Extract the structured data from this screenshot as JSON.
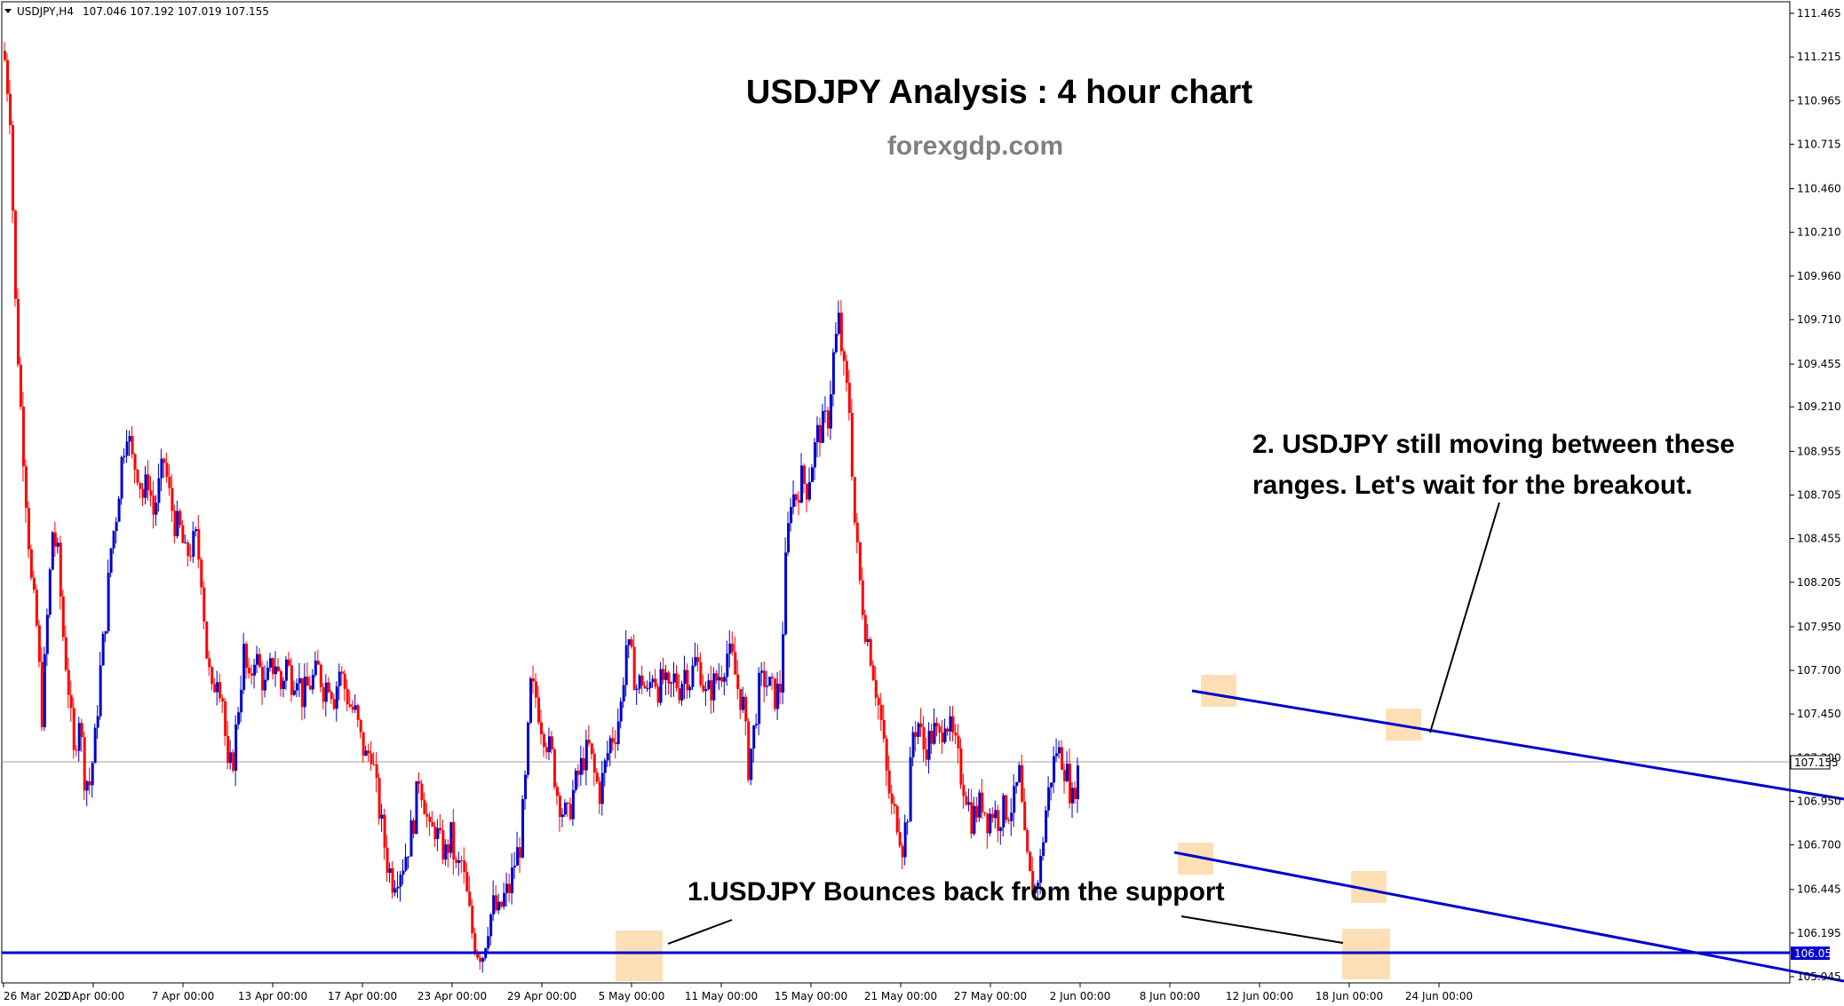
{
  "header": {
    "symbol": "USDJPY,H4",
    "ohlc": "107.046 107.192 107.019 107.155"
  },
  "chart_data": {
    "type": "candlestick",
    "title": "USDJPY Analysis : 4 hour chart",
    "subtitle": "forexgdp.com",
    "y_ticks": [
      "111.465",
      "111.215",
      "110.965",
      "110.715",
      "110.460",
      "110.210",
      "109.960",
      "109.710",
      "109.455",
      "109.210",
      "108.955",
      "108.705",
      "108.455",
      "108.205",
      "107.950",
      "107.700",
      "107.450",
      "107.200",
      "106.950",
      "106.700",
      "106.445",
      "106.195",
      "105.945"
    ],
    "x_ticks": [
      "26 Mar 2020",
      "1 Apr 00:00",
      "7 Apr 00:00",
      "13 Apr 00:00",
      "17 Apr 00:00",
      "23 Apr 00:00",
      "29 Apr 00:00",
      "5 May 00:00",
      "11 May 00:00",
      "15 May 00:00",
      "21 May 00:00",
      "27 May 00:00",
      "2 Jun 00:00",
      "8 Jun 00:00",
      "12 Jun 00:00",
      "18 Jun 00:00",
      "24 Jun 00:00"
    ],
    "ylim": [
      105.9,
      111.5
    ],
    "current_price": "107.155",
    "support_price": "106.050",
    "up_color": "#0000cd",
    "down_color": "#ff0000",
    "price_path": [
      [
        0,
        111.2
      ],
      [
        6,
        110.9
      ],
      [
        12,
        109.8
      ],
      [
        18,
        109.2
      ],
      [
        24,
        108.7
      ],
      [
        30,
        108.2
      ],
      [
        36,
        107.95
      ],
      [
        42,
        107.45
      ],
      [
        48,
        108.0
      ],
      [
        54,
        108.5
      ],
      [
        60,
        108.35
      ],
      [
        66,
        107.9
      ],
      [
        72,
        107.6
      ],
      [
        78,
        107.2
      ],
      [
        84,
        107.45
      ],
      [
        90,
        107.1
      ],
      [
        96,
        107.05
      ],
      [
        102,
        107.3
      ],
      [
        108,
        107.7
      ],
      [
        114,
        108.0
      ],
      [
        120,
        108.4
      ],
      [
        126,
        108.6
      ],
      [
        132,
        108.9
      ],
      [
        138,
        109.1
      ],
      [
        144,
        108.9
      ],
      [
        150,
        108.85
      ],
      [
        156,
        108.7
      ],
      [
        162,
        108.8
      ],
      [
        168,
        108.6
      ],
      [
        174,
        108.75
      ],
      [
        180,
        108.9
      ],
      [
        186,
        108.7
      ],
      [
        192,
        108.55
      ],
      [
        198,
        108.5
      ],
      [
        204,
        108.35
      ],
      [
        210,
        108.4
      ],
      [
        216,
        108.45
      ],
      [
        222,
        108.25
      ],
      [
        228,
        107.8
      ],
      [
        234,
        107.55
      ],
      [
        240,
        107.7
      ],
      [
        246,
        107.55
      ],
      [
        252,
        107.1
      ],
      [
        258,
        107.2
      ],
      [
        264,
        107.5
      ],
      [
        270,
        107.8
      ],
      [
        276,
        107.6
      ],
      [
        282,
        107.8
      ],
      [
        288,
        107.7
      ],
      [
        294,
        107.6
      ],
      [
        300,
        107.7
      ],
      [
        306,
        107.75
      ],
      [
        312,
        107.6
      ],
      [
        318,
        107.75
      ],
      [
        324,
        107.65
      ],
      [
        330,
        107.7
      ],
      [
        336,
        107.55
      ],
      [
        342,
        107.6
      ],
      [
        348,
        107.65
      ],
      [
        354,
        107.7
      ],
      [
        360,
        107.6
      ],
      [
        366,
        107.65
      ],
      [
        372,
        107.55
      ],
      [
        378,
        107.7
      ],
      [
        384,
        107.6
      ],
      [
        390,
        107.5
      ],
      [
        396,
        107.45
      ],
      [
        402,
        107.3
      ],
      [
        408,
        107.2
      ],
      [
        414,
        107.25
      ],
      [
        420,
        107.0
      ],
      [
        426,
        106.8
      ],
      [
        432,
        106.6
      ],
      [
        438,
        106.5
      ],
      [
        444,
        106.55
      ],
      [
        450,
        106.6
      ],
      [
        456,
        106.7
      ],
      [
        462,
        106.85
      ],
      [
        468,
        107.1
      ],
      [
        474,
        106.95
      ],
      [
        480,
        106.75
      ],
      [
        486,
        106.8
      ],
      [
        492,
        106.7
      ],
      [
        498,
        106.65
      ],
      [
        504,
        106.75
      ],
      [
        510,
        106.55
      ],
      [
        516,
        106.6
      ],
      [
        522,
        106.4
      ],
      [
        528,
        106.2
      ],
      [
        534,
        106.1
      ],
      [
        540,
        106.08
      ],
      [
        546,
        106.25
      ],
      [
        552,
        106.35
      ],
      [
        558,
        106.3
      ],
      [
        564,
        106.4
      ],
      [
        570,
        106.45
      ],
      [
        576,
        106.6
      ],
      [
        582,
        106.7
      ],
      [
        588,
        107.05
      ],
      [
        594,
        107.6
      ],
      [
        600,
        107.55
      ],
      [
        606,
        107.4
      ],
      [
        612,
        107.3
      ],
      [
        618,
        107.2
      ],
      [
        624,
        107.0
      ],
      [
        630,
        106.9
      ],
      [
        636,
        106.85
      ],
      [
        642,
        107.0
      ],
      [
        648,
        107.1
      ],
      [
        654,
        107.2
      ],
      [
        660,
        107.25
      ],
      [
        666,
        107.1
      ],
      [
        672,
        107.0
      ],
      [
        678,
        107.15
      ],
      [
        684,
        107.3
      ],
      [
        690,
        107.35
      ],
      [
        696,
        107.5
      ],
      [
        702,
        107.85
      ],
      [
        708,
        107.75
      ],
      [
        714,
        107.6
      ],
      [
        720,
        107.65
      ],
      [
        726,
        107.55
      ],
      [
        732,
        107.7
      ],
      [
        738,
        107.6
      ],
      [
        744,
        107.65
      ],
      [
        750,
        107.55
      ],
      [
        756,
        107.65
      ],
      [
        762,
        107.6
      ],
      [
        768,
        107.7
      ],
      [
        774,
        107.65
      ],
      [
        780,
        107.75
      ],
      [
        786,
        107.7
      ],
      [
        792,
        107.55
      ],
      [
        798,
        107.6
      ],
      [
        804,
        107.65
      ],
      [
        810,
        107.7
      ],
      [
        816,
        107.8
      ],
      [
        822,
        107.75
      ],
      [
        828,
        107.6
      ],
      [
        834,
        107.5
      ],
      [
        840,
        107.15
      ],
      [
        846,
        107.35
      ],
      [
        852,
        107.6
      ],
      [
        858,
        107.65
      ],
      [
        864,
        107.6
      ],
      [
        870,
        107.55
      ],
      [
        876,
        107.6
      ],
      [
        882,
        108.3
      ],
      [
        888,
        108.7
      ],
      [
        894,
        108.7
      ],
      [
        900,
        108.8
      ],
      [
        906,
        108.75
      ],
      [
        912,
        108.9
      ],
      [
        918,
        109.05
      ],
      [
        924,
        109.1
      ],
      [
        930,
        109.15
      ],
      [
        936,
        109.5
      ],
      [
        942,
        109.7
      ],
      [
        948,
        109.4
      ],
      [
        954,
        109.2
      ],
      [
        960,
        108.55
      ],
      [
        966,
        108.2
      ],
      [
        972,
        107.95
      ],
      [
        978,
        107.8
      ],
      [
        984,
        107.6
      ],
      [
        990,
        107.4
      ],
      [
        996,
        107.1
      ],
      [
        1002,
        106.9
      ],
      [
        1008,
        106.85
      ],
      [
        1014,
        106.7
      ],
      [
        1020,
        106.9
      ],
      [
        1026,
        107.35
      ],
      [
        1032,
        107.4
      ],
      [
        1038,
        107.25
      ],
      [
        1044,
        107.3
      ],
      [
        1050,
        107.35
      ],
      [
        1056,
        107.3
      ],
      [
        1062,
        107.45
      ],
      [
        1068,
        107.35
      ],
      [
        1074,
        107.25
      ],
      [
        1080,
        107.1
      ],
      [
        1086,
        107.0
      ],
      [
        1092,
        106.85
      ],
      [
        1098,
        106.9
      ],
      [
        1104,
        106.95
      ],
      [
        1110,
        106.85
      ],
      [
        1116,
        106.9
      ],
      [
        1122,
        106.85
      ],
      [
        1128,
        106.9
      ],
      [
        1134,
        106.9
      ],
      [
        1140,
        106.95
      ],
      [
        1146,
        107.1
      ],
      [
        1152,
        106.7
      ],
      [
        1158,
        106.5
      ],
      [
        1164,
        106.45
      ],
      [
        1170,
        106.6
      ],
      [
        1176,
        106.9
      ],
      [
        1182,
        107.1
      ],
      [
        1188,
        107.25
      ],
      [
        1194,
        107.2
      ],
      [
        1200,
        107.1
      ],
      [
        1206,
        106.95
      ],
      [
        1212,
        107.155
      ]
    ],
    "annotations": {
      "note1": "1.USDJPY Bounces back from the support",
      "note2_line1": "2. USDJPY still moving between these",
      "note2_line2": "ranges. Let's wait for the breakout."
    }
  }
}
